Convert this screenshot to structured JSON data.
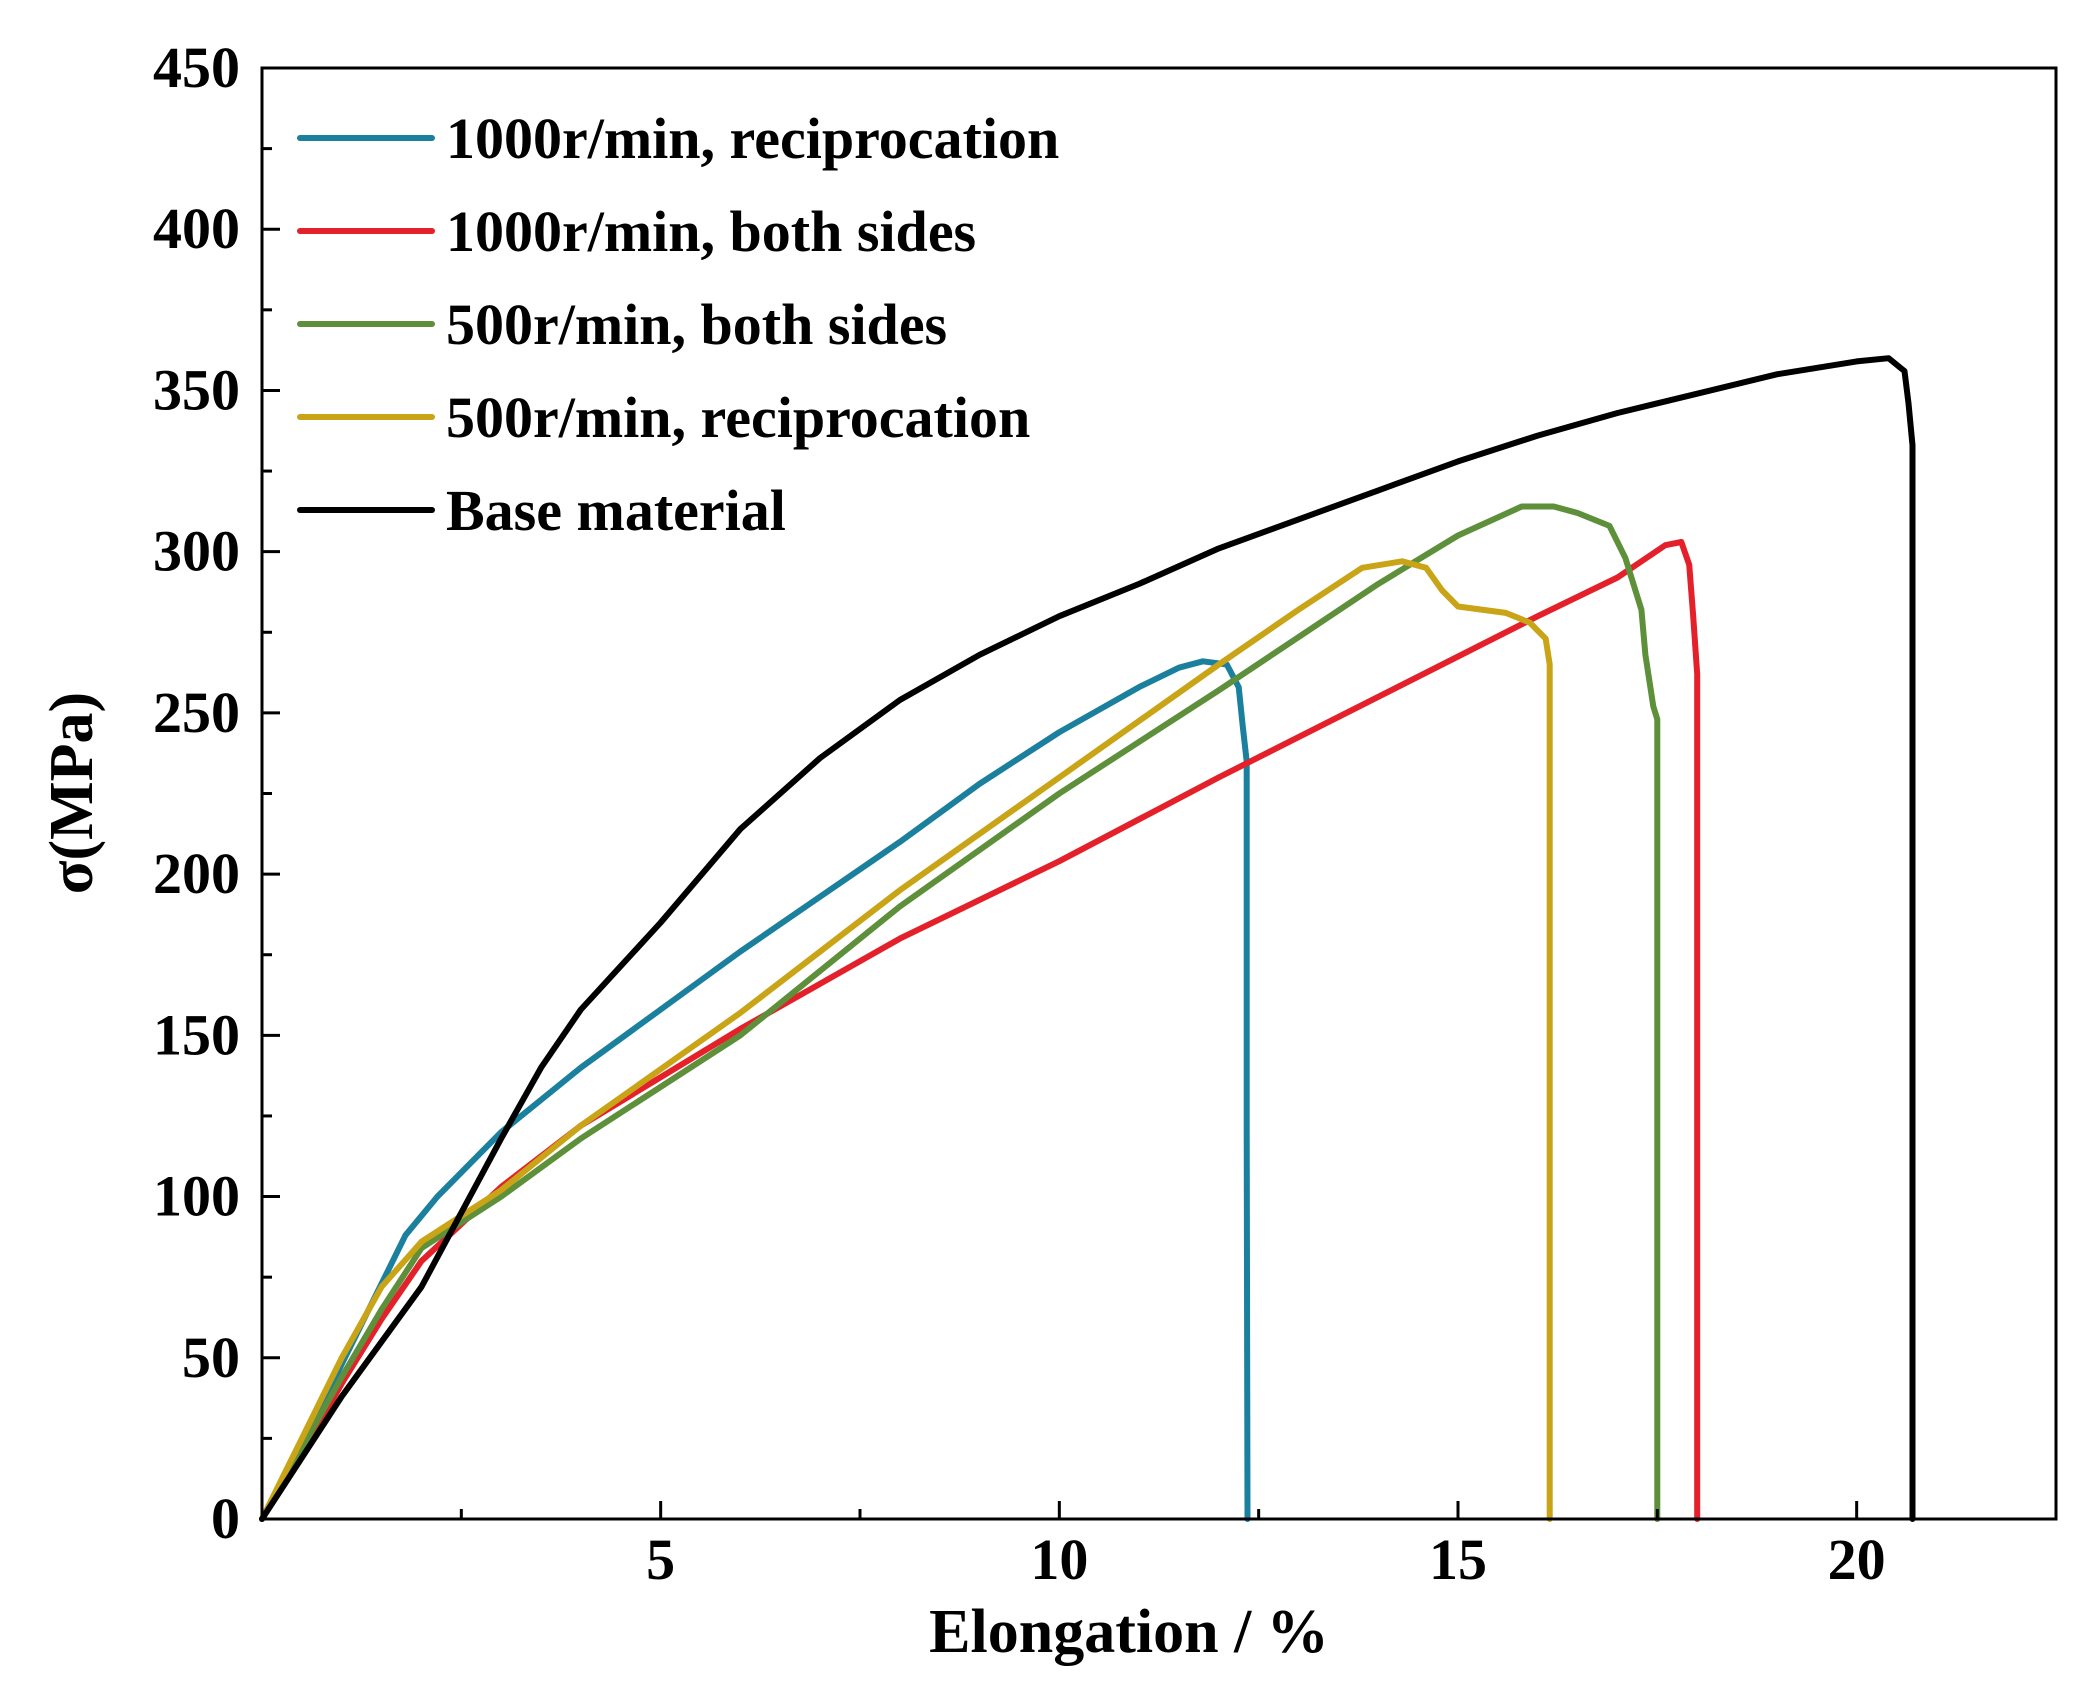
{
  "chart_data": {
    "type": "line",
    "title": "",
    "xlabel": "Elongation / %",
    "ylabel": "σ(MPa)",
    "xlim": [
      0,
      22.5
    ],
    "ylim": [
      0,
      450
    ],
    "grid": false,
    "legend_position": "top-left",
    "x_ticks": [
      5,
      10,
      15,
      20
    ],
    "x_tick_labels": [
      "5",
      "10",
      "15",
      "20"
    ],
    "x_minor_ticks": [
      2.5,
      7.5,
      12.5,
      17.5
    ],
    "y_ticks": [
      0,
      50,
      100,
      150,
      200,
      250,
      300,
      350,
      400,
      450
    ],
    "y_tick_labels": [
      "0",
      "50",
      "100",
      "150",
      "200",
      "250",
      "300",
      "350",
      "400",
      "450"
    ],
    "y_minor_ticks": [
      25,
      75,
      125,
      175,
      225,
      275,
      325,
      375,
      425
    ],
    "series": [
      {
        "name": "1000r/min, reciprocation",
        "color": "#1b7f9e",
        "points": [
          [
            0,
            0
          ],
          [
            0.5,
            22
          ],
          [
            1.0,
            48
          ],
          [
            1.5,
            73
          ],
          [
            1.8,
            88
          ],
          [
            2.2,
            100
          ],
          [
            3.0,
            120
          ],
          [
            4.0,
            140
          ],
          [
            5.0,
            158
          ],
          [
            6.0,
            176
          ],
          [
            7.0,
            193
          ],
          [
            8.0,
            210
          ],
          [
            9.0,
            228
          ],
          [
            10.0,
            244
          ],
          [
            11.0,
            258
          ],
          [
            11.5,
            264
          ],
          [
            11.8,
            266
          ],
          [
            12.1,
            265
          ],
          [
            12.25,
            258
          ],
          [
            12.3,
            246
          ],
          [
            12.35,
            235
          ],
          [
            12.35,
            120
          ],
          [
            12.36,
            0
          ]
        ]
      },
      {
        "name": "1000r/min, both sides",
        "color": "#e4202a",
        "points": [
          [
            0,
            0
          ],
          [
            0.5,
            20
          ],
          [
            1.0,
            42
          ],
          [
            1.5,
            62
          ],
          [
            2.0,
            80
          ],
          [
            3.0,
            103
          ],
          [
            4.0,
            122
          ],
          [
            6.0,
            152
          ],
          [
            8.0,
            180
          ],
          [
            10.0,
            204
          ],
          [
            12.0,
            230
          ],
          [
            14.0,
            255
          ],
          [
            16.0,
            280
          ],
          [
            17.0,
            292
          ],
          [
            17.6,
            302
          ],
          [
            17.8,
            303
          ],
          [
            17.9,
            296
          ],
          [
            17.95,
            280
          ],
          [
            18.0,
            262
          ],
          [
            18.0,
            120
          ],
          [
            18.0,
            0
          ]
        ]
      },
      {
        "name": "500r/min, both sides",
        "color": "#5e8f3a",
        "points": [
          [
            0,
            0
          ],
          [
            0.5,
            22
          ],
          [
            1.0,
            44
          ],
          [
            1.5,
            65
          ],
          [
            2.0,
            84
          ],
          [
            3.0,
            100
          ],
          [
            4.0,
            118
          ],
          [
            6.0,
            150
          ],
          [
            8.0,
            190
          ],
          [
            10.0,
            225
          ],
          [
            12.0,
            257
          ],
          [
            14.0,
            290
          ],
          [
            15.0,
            305
          ],
          [
            15.8,
            314
          ],
          [
            16.2,
            314
          ],
          [
            16.5,
            312
          ],
          [
            16.9,
            308
          ],
          [
            17.1,
            298
          ],
          [
            17.3,
            282
          ],
          [
            17.35,
            268
          ],
          [
            17.45,
            252
          ],
          [
            17.5,
            248
          ],
          [
            17.5,
            120
          ],
          [
            17.5,
            0
          ]
        ]
      },
      {
        "name": "500r/min, reciprocation",
        "color": "#c9a417",
        "points": [
          [
            0,
            0
          ],
          [
            0.5,
            25
          ],
          [
            1.0,
            50
          ],
          [
            1.5,
            72
          ],
          [
            2.0,
            86
          ],
          [
            3.0,
            102
          ],
          [
            4.0,
            122
          ],
          [
            6.0,
            157
          ],
          [
            8.0,
            195
          ],
          [
            10.0,
            230
          ],
          [
            12.0,
            265
          ],
          [
            13.0,
            282
          ],
          [
            13.8,
            295
          ],
          [
            14.3,
            297
          ],
          [
            14.6,
            295
          ],
          [
            14.8,
            288
          ],
          [
            15.0,
            283
          ],
          [
            15.6,
            281
          ],
          [
            15.9,
            278
          ],
          [
            16.1,
            273
          ],
          [
            16.15,
            265
          ],
          [
            16.15,
            120
          ],
          [
            16.15,
            0
          ]
        ]
      },
      {
        "name": "Base material",
        "color": "#000000",
        "points": [
          [
            0,
            0
          ],
          [
            1.0,
            38
          ],
          [
            2.0,
            72
          ],
          [
            2.5,
            95
          ],
          [
            3.0,
            118
          ],
          [
            3.5,
            140
          ],
          [
            4.0,
            158
          ],
          [
            5.0,
            185
          ],
          [
            6.0,
            214
          ],
          [
            7.0,
            236
          ],
          [
            8.0,
            254
          ],
          [
            9.0,
            268
          ],
          [
            10.0,
            280
          ],
          [
            11.0,
            290
          ],
          [
            12.0,
            301
          ],
          [
            13.0,
            310
          ],
          [
            14.0,
            319
          ],
          [
            15.0,
            328
          ],
          [
            16.0,
            336
          ],
          [
            17.0,
            343
          ],
          [
            18.0,
            349
          ],
          [
            19.0,
            355
          ],
          [
            20.0,
            359
          ],
          [
            20.4,
            360
          ],
          [
            20.6,
            356
          ],
          [
            20.65,
            346
          ],
          [
            20.7,
            333
          ],
          [
            20.7,
            150
          ],
          [
            20.7,
            0
          ]
        ]
      }
    ]
  }
}
